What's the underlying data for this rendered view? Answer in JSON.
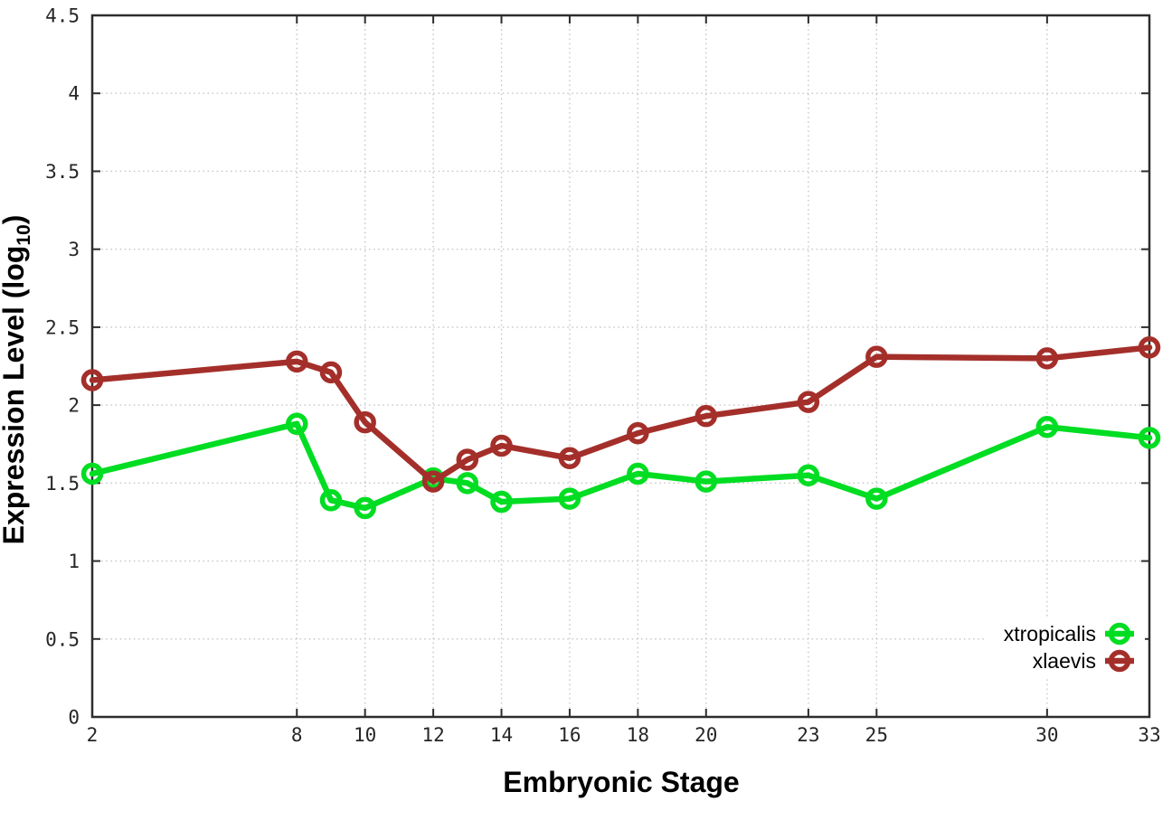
{
  "figure": {
    "background": "#ffffff",
    "border_color": "#2d2d2d",
    "grid_color": "#c4c4c4",
    "tick_label_color": "#262626"
  },
  "chart_data": {
    "type": "line",
    "title": "",
    "xlabel": "Embryonic Stage",
    "ylabel": "Expression Level (log10)",
    "ylabel_parts": {
      "prefix": "Expression Level (log",
      "sub": "10",
      "suffix": ")"
    },
    "xlim": [
      2,
      33
    ],
    "ylim": [
      0,
      4.5
    ],
    "grid": true,
    "xticks": [
      2,
      8,
      10,
      12,
      14,
      16,
      18,
      20,
      23,
      25,
      30,
      33
    ],
    "ytick_labels": [
      "0",
      "0.5",
      "1",
      "1.5",
      "2",
      "2.5",
      "3",
      "3.5",
      "4",
      "4.5"
    ],
    "x": [
      2,
      8,
      9,
      10,
      12,
      13,
      14,
      16,
      18,
      20,
      23,
      25,
      30,
      33
    ],
    "series": [
      {
        "name": "xtropicalis",
        "color": "#00dd22",
        "marker": "circle-open",
        "values": [
          1.56,
          1.88,
          1.39,
          1.34,
          1.53,
          1.5,
          1.38,
          1.4,
          1.56,
          1.51,
          1.55,
          1.4,
          1.86,
          1.79
        ]
      },
      {
        "name": "xlaevis",
        "color": "#a42f2a",
        "marker": "circle-open",
        "values": [
          2.16,
          2.28,
          2.21,
          1.89,
          1.51,
          1.65,
          1.74,
          1.66,
          1.82,
          1.93,
          2.02,
          2.31,
          2.3,
          2.37
        ]
      }
    ],
    "legend_position": "bottom-right",
    "legend_labels": [
      "xtropicalis",
      "xlaevis"
    ]
  }
}
